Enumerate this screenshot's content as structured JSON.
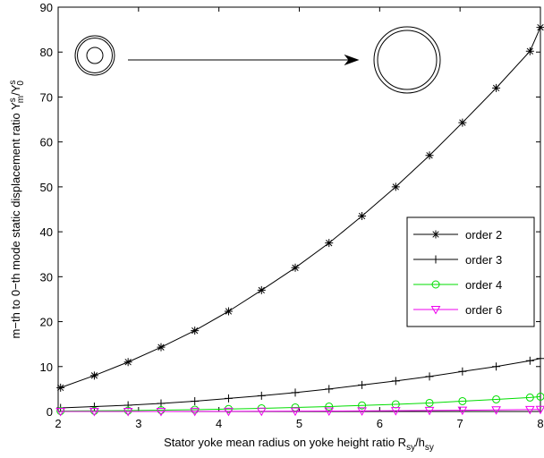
{
  "chart_data": {
    "type": "line",
    "xlabel_parts": [
      "Stator yoke mean radius on yoke height ratio R",
      "sy",
      "/h",
      "sy"
    ],
    "ylabel_parts": [
      "m−th to 0−th mode static displacement ratio Y",
      "s",
      "m",
      "/Y",
      "s",
      "0"
    ],
    "x": [
      2.03,
      2.45,
      2.87,
      3.28,
      3.7,
      4.12,
      4.53,
      4.95,
      5.37,
      5.78,
      6.2,
      6.62,
      7.03,
      7.45,
      7.87,
      8
    ],
    "series": [
      {
        "name": "order 2",
        "color": "#000000",
        "marker": "asterisk",
        "values": [
          5.3,
          8,
          11,
          14.3,
          18,
          22.3,
          27,
          32,
          37.5,
          43.5,
          50,
          57,
          64.3,
          72,
          80.2,
          85.5
        ]
      },
      {
        "name": "order 3",
        "color": "#000000",
        "marker": "plus",
        "values": [
          0.8,
          1.1,
          1.4,
          1.8,
          2.3,
          2.9,
          3.5,
          4.2,
          5,
          5.9,
          6.8,
          7.8,
          8.9,
          10,
          11.3,
          11.8
        ]
      },
      {
        "name": "order 4",
        "color": "#00dd00",
        "marker": "circle",
        "values": [
          0.1,
          0.15,
          0.2,
          0.3,
          0.4,
          0.55,
          0.7,
          0.9,
          1.1,
          1.35,
          1.6,
          1.9,
          2.3,
          2.7,
          3.1,
          3.3
        ]
      },
      {
        "name": "order 6",
        "color": "#ee00ee",
        "marker": "triangle-down",
        "values": [
          0,
          0,
          0,
          0.01,
          0.02,
          0.03,
          0.05,
          0.07,
          0.1,
          0.13,
          0.17,
          0.22,
          0.28,
          0.35,
          0.43,
          0.46
        ]
      }
    ],
    "xlim": [
      2,
      8
    ],
    "xticks": [
      2,
      3,
      4,
      5,
      6,
      7,
      8
    ],
    "ylim": [
      0,
      90
    ],
    "yticks": [
      0,
      10,
      20,
      30,
      40,
      50,
      60,
      70,
      80,
      90
    ],
    "legend": "right"
  }
}
